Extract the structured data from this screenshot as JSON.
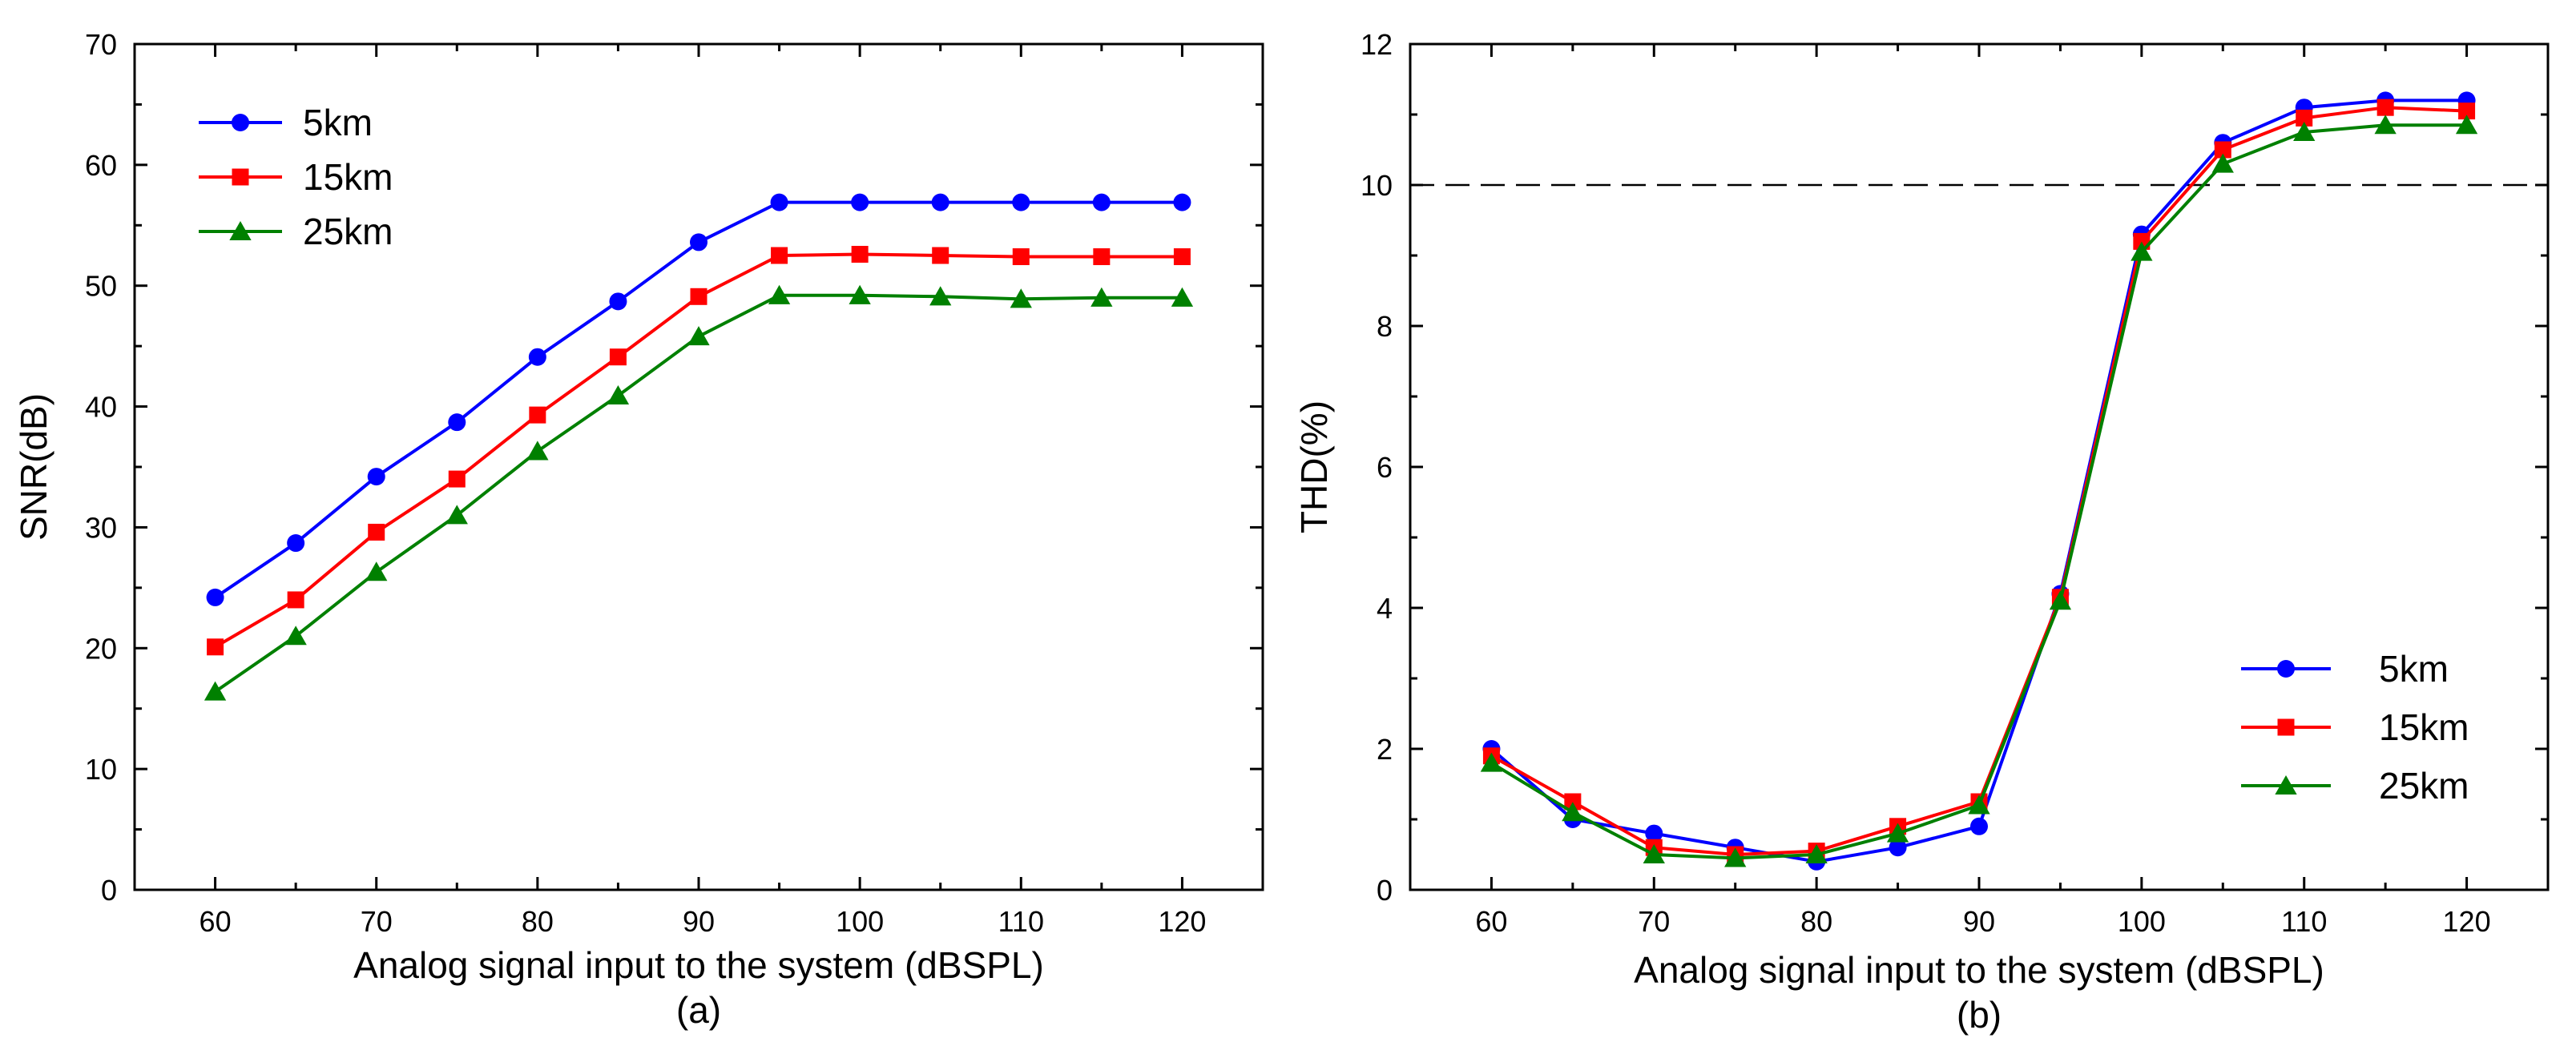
{
  "chart_data": [
    {
      "type": "line",
      "title": "",
      "caption": "(a)",
      "xlabel": "Analog signal input to the system (dBSPL)",
      "ylabel": "SNR(dB)",
      "xlim": [
        55,
        125
      ],
      "ylim": [
        0,
        70
      ],
      "xticks": [
        60,
        70,
        80,
        90,
        100,
        110,
        120
      ],
      "yticks": [
        0,
        10,
        20,
        30,
        40,
        50,
        60,
        70
      ],
      "grid": false,
      "legend_position": "top-left",
      "x": [
        60,
        65,
        70,
        75,
        80,
        85,
        90,
        95,
        100,
        105,
        110,
        115,
        120
      ],
      "series": [
        {
          "name": "5km",
          "color": "#0000ff",
          "marker": "circle",
          "values": [
            24.2,
            28.7,
            34.2,
            38.7,
            44.1,
            48.7,
            53.6,
            56.9,
            56.9,
            56.9,
            56.9,
            56.9,
            56.9
          ]
        },
        {
          "name": "15km",
          "color": "#ff0000",
          "marker": "square",
          "values": [
            20.1,
            24.0,
            29.6,
            34.0,
            39.3,
            44.1,
            49.1,
            52.5,
            52.6,
            52.5,
            52.4,
            52.4,
            52.4
          ]
        },
        {
          "name": "25km",
          "color": "#008000",
          "marker": "triangle",
          "values": [
            16.4,
            21.0,
            26.3,
            31.0,
            36.3,
            40.9,
            45.8,
            49.2,
            49.2,
            49.1,
            48.9,
            49.0,
            49.0
          ]
        }
      ]
    },
    {
      "type": "line",
      "title": "",
      "caption": "(b)",
      "xlabel": "Analog signal input to the system (dBSPL)",
      "ylabel": "THD(%)",
      "xlim": [
        55,
        125
      ],
      "ylim": [
        0,
        12
      ],
      "xticks": [
        60,
        70,
        80,
        90,
        100,
        110,
        120
      ],
      "yticks": [
        0,
        2,
        4,
        6,
        8,
        10,
        12
      ],
      "grid": false,
      "legend_position": "bottom-right",
      "reference_line": {
        "y": 10,
        "style": "dashed"
      },
      "x": [
        60,
        65,
        70,
        75,
        80,
        85,
        90,
        95,
        100,
        105,
        110,
        115,
        120
      ],
      "series": [
        {
          "name": "5km",
          "color": "#0000ff",
          "marker": "circle",
          "values": [
            2.0,
            1.0,
            0.8,
            0.6,
            0.4,
            0.6,
            0.9,
            4.2,
            9.3,
            10.6,
            11.1,
            11.2,
            11.2
          ]
        },
        {
          "name": "15km",
          "color": "#ff0000",
          "marker": "square",
          "values": [
            1.9,
            1.25,
            0.6,
            0.5,
            0.55,
            0.9,
            1.25,
            4.15,
            9.2,
            10.5,
            10.95,
            11.1,
            11.05
          ]
        },
        {
          "name": "25km",
          "color": "#008000",
          "marker": "triangle",
          "values": [
            1.8,
            1.1,
            0.5,
            0.45,
            0.5,
            0.8,
            1.2,
            4.1,
            9.05,
            10.3,
            10.75,
            10.85,
            10.85
          ]
        }
      ]
    }
  ]
}
